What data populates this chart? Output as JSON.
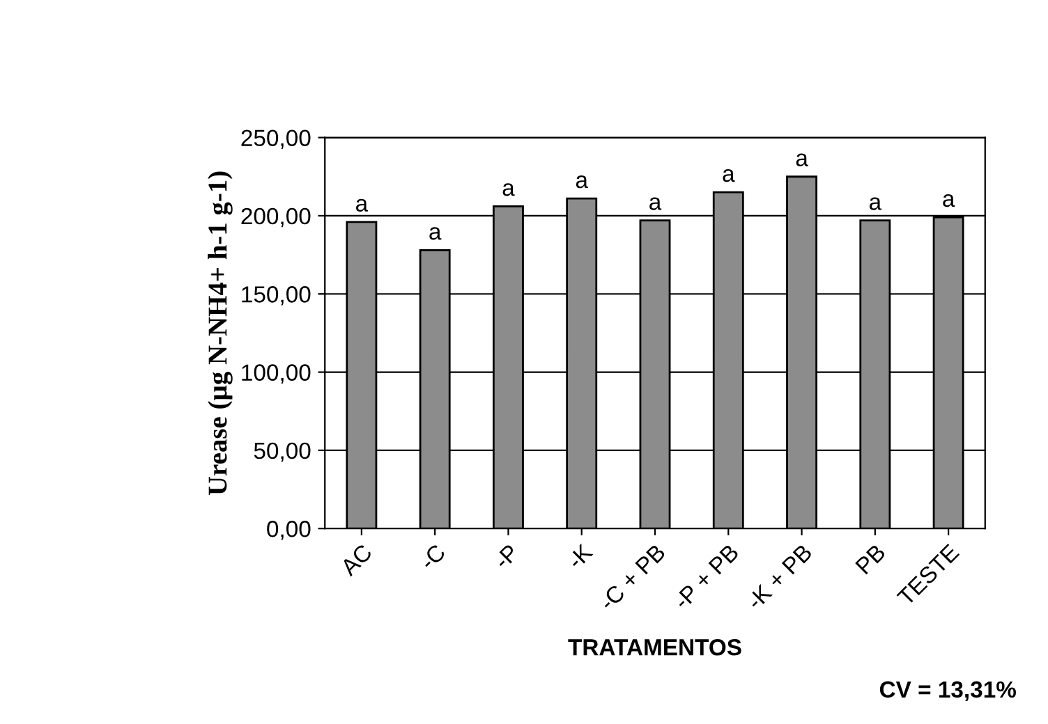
{
  "chart_data": {
    "type": "bar",
    "categories": [
      "AC",
      "-C",
      "-P",
      "-K",
      "-C + PB",
      "-P + PB",
      "-K + PB",
      "PB",
      "TESTE"
    ],
    "values": [
      196,
      178,
      206,
      211,
      197,
      215,
      225,
      197,
      199
    ],
    "color": "#8c8c8c",
    "value_labels": [
      "a",
      "a",
      "a",
      "a",
      "a",
      "a",
      "a",
      "a",
      "a"
    ],
    "xlabel": "TRATAMENTOS",
    "ylabel": "Urease (µg N-NH4+ h-1 g-1)",
    "ylim": [
      0,
      250
    ],
    "yticks": [
      {
        "value": 0,
        "label": "0,00"
      },
      {
        "value": 50,
        "label": "50,00"
      },
      {
        "value": 100,
        "label": "100,00"
      },
      {
        "value": 150,
        "label": "150,00"
      },
      {
        "value": 200,
        "label": "200,00"
      },
      {
        "value": 250,
        "label": "250,00"
      }
    ],
    "grid": "y",
    "legend": false,
    "annotations": [
      "CV = 13,31%"
    ]
  }
}
